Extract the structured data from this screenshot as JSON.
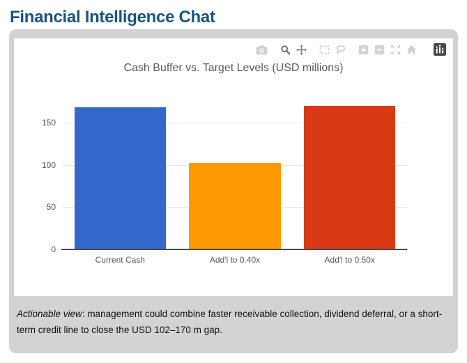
{
  "page": {
    "title": "Financial Intelligence Chat"
  },
  "theme": {
    "title_color": "#1a5480",
    "card_bg": "#d3d3d3",
    "panel_bg": "#ffffff",
    "axis_text_color": "#555555",
    "gridline_color": "#e9e9e9"
  },
  "modebar": {
    "icons": [
      "camera-icon",
      "magnifier-icon",
      "pan-arrows-icon",
      "box-select-icon",
      "lasso-icon",
      "plus-square-icon",
      "minus-square-icon",
      "autoscale-expand-icon",
      "home-icon",
      "plotly-logo-icon"
    ]
  },
  "chart_data": {
    "type": "bar",
    "title": "Cash Buffer vs. Target Levels (USD millions)",
    "categories": [
      "Current Cash",
      "Add'l to 0.40x",
      "Add'l to 0.50x"
    ],
    "values": [
      168,
      102,
      170
    ],
    "bar_colors": [
      "#3568cd",
      "#ff9902",
      "#d93a15"
    ],
    "xlabel": "",
    "ylabel": "",
    "yticks": [
      0,
      50,
      100,
      150
    ],
    "ylim": [
      0,
      188
    ],
    "grid": true,
    "legend": false,
    "bar_width_ratio": 0.8
  },
  "note": {
    "lead_italic": "Actionable view",
    "rest": ": management could combine faster receivable collection, dividend deferral, or a short-term credit line to close the USD 102–170 m gap."
  }
}
